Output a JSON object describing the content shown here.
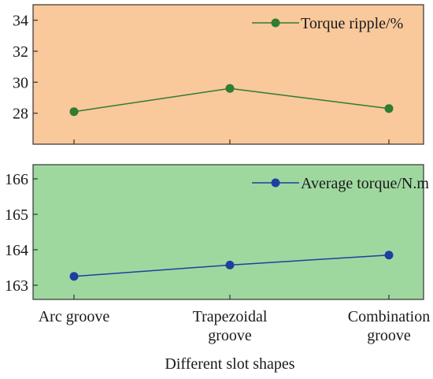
{
  "chart_data": [
    {
      "type": "line",
      "categories": [
        "Arc groove",
        "Trapezoidal groove",
        "Combination groove"
      ],
      "series": [
        {
          "name": "Torque ripple/%",
          "values": [
            28.1,
            29.6,
            28.3
          ],
          "color": "#2e7d32"
        }
      ],
      "ylim": [
        26,
        35
      ],
      "yticks": [
        28,
        30,
        32,
        34
      ],
      "background": "#f9c89b",
      "legend": "top-right"
    },
    {
      "type": "line",
      "categories": [
        "Arc groove",
        "Trapezoidal groove",
        "Combination groove"
      ],
      "series": [
        {
          "name": "Average torque/N.m",
          "values": [
            163.25,
            163.57,
            163.85
          ],
          "color": "#1f3fa0"
        }
      ],
      "ylim": [
        162.6,
        166.4
      ],
      "yticks": [
        163,
        164,
        165,
        166
      ],
      "background": "#9fd89f",
      "legend": "top-right"
    }
  ],
  "xaxis": {
    "category_lines": [
      [
        "Arc groove"
      ],
      [
        "Trapezoidal",
        "groove"
      ],
      [
        "Combination",
        "groove"
      ]
    ],
    "title": "Different slot shapes"
  }
}
